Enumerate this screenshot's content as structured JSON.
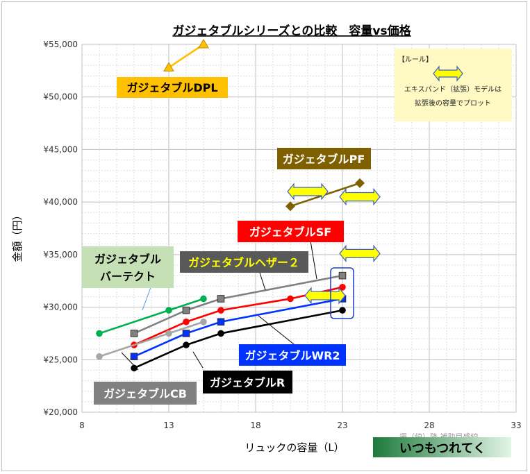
{
  "chart_data": {
    "type": "scatter",
    "title": "ガジェタブルシリーズとの比較　容量vs価格",
    "xlabel": "リュックの容量（L）",
    "ylabel": "金額（円）",
    "xlim": [
      8,
      33
    ],
    "ylim": [
      20000,
      55000
    ],
    "x_ticks": [
      8,
      13,
      18,
      23,
      28,
      33
    ],
    "y_ticks": [
      20000,
      25000,
      30000,
      35000,
      40000,
      45000,
      50000,
      55000
    ],
    "y_tick_labels": [
      "¥20,000",
      "¥25,000",
      "¥30,000",
      "¥35,000",
      "¥40,000",
      "¥45,000",
      "¥50,000",
      "¥55,000"
    ],
    "grid": true,
    "series": [
      {
        "id": "dpl",
        "name": "ガジェタブルDPL",
        "color": "#ffc000",
        "marker": "triangle",
        "x": [
          13,
          15
        ],
        "y": [
          52800,
          55000
        ]
      },
      {
        "id": "pf",
        "name": "ガジェタブルPF",
        "color": "#7f6000",
        "marker": "diamond",
        "x": [
          20,
          24
        ],
        "y": [
          39600,
          41800
        ]
      },
      {
        "id": "heather2",
        "name": "ガジェタブルヘザー２",
        "color": "#808080",
        "marker": "square",
        "x": [
          11,
          14,
          16,
          23
        ],
        "y": [
          27500,
          29700,
          30800,
          33000
        ]
      },
      {
        "id": "sf",
        "name": "ガジェタブルSF",
        "color": "#ff0000",
        "marker": "circle",
        "x": [
          11,
          14,
          16,
          20,
          23
        ],
        "y": [
          26400,
          28600,
          29700,
          30800,
          31900
        ]
      },
      {
        "id": "wr2",
        "name": "ガジェタブルWR2",
        "color": "#0033ff",
        "marker": "square",
        "x": [
          11,
          14,
          16,
          23
        ],
        "y": [
          25300,
          27500,
          28600,
          30800
        ]
      },
      {
        "id": "r",
        "name": "ガジェタブルR",
        "color": "#000000",
        "marker": "circle",
        "x": [
          11,
          14,
          16,
          23
        ],
        "y": [
          24200,
          26400,
          27500,
          29700
        ]
      },
      {
        "id": "cb",
        "name": "ガジェタブルCB",
        "color": "#a6a6a6",
        "marker": "circle",
        "x": [
          9,
          13,
          15
        ],
        "y": [
          25300,
          27500,
          28600
        ]
      },
      {
        "id": "bartekt",
        "name": "ガジェタブルバーテクト",
        "color": "#00b050",
        "marker": "circle",
        "x": [
          9,
          13,
          15
        ],
        "y": [
          27500,
          29700,
          30800
        ]
      }
    ],
    "expand_markers": [
      {
        "x": 21,
        "y": 41000
      },
      {
        "x": 24,
        "y": 40500
      },
      {
        "x": 22,
        "y": 31100
      },
      {
        "x": 24,
        "y": 35100
      }
    ],
    "note": {
      "title": "【ルール】",
      "line1": "エキスパンド（拡張）モデルは",
      "line2": "拡張後の容量でプロット"
    },
    "callouts": {
      "dpl": "ガジェタブルDPL",
      "pf": "ガジェタブルPF",
      "sf": "ガジェタブルSF",
      "heather2": "ガジェタブルヘザー２",
      "bartekt_line1": "ガジェタブル",
      "bartekt_line2": "バーテクト",
      "wr2": "ガジェタブルWR2",
      "r": "ガジェタブルR",
      "cb": "ガジェタブルCB"
    },
    "watermark": "撮（値）隆 補助目盛線",
    "brand": "いつもつれてく",
    "colors": {
      "dpl_box": "#ffc000",
      "pf_box": "#7f6000",
      "sf_box": "#ff0000",
      "heather_box": "#595959",
      "heather_text": "#ffff00",
      "bartekt_box": "#c5e0b4",
      "wr2_box": "#0033ff",
      "r_box": "#000000",
      "cb_box": "#808080",
      "note_box": "#fff9c4",
      "arrow_fill": "#ffff00",
      "arrow_stroke": "#3a5fcd",
      "brand_start": "#1e7a3c",
      "brand_end": "#e2f5e6"
    }
  }
}
